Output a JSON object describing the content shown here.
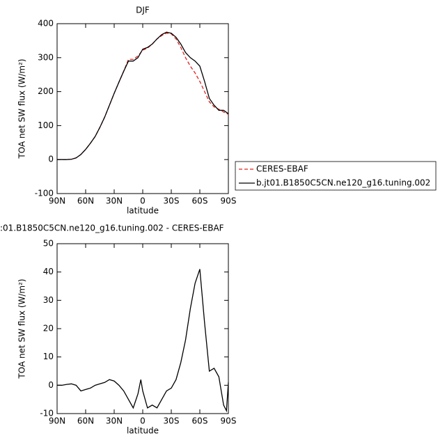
{
  "chart_data": [
    {
      "type": "line",
      "title": "DJF",
      "y_label": "TOA net SW flux (W/m²)",
      "x_label": "latitude",
      "x": [
        90,
        85,
        80,
        75,
        70,
        65,
        60,
        55,
        50,
        45,
        40,
        35,
        30,
        25,
        20,
        15,
        10,
        5,
        0,
        -5,
        -10,
        -15,
        -20,
        -25,
        -30,
        -35,
        -40,
        -45,
        -50,
        -55,
        -60,
        -65,
        -70,
        -75,
        -80,
        -85,
        -90
      ],
      "series": [
        {
          "name": "CERES-EBAF",
          "color": "#e0201b",
          "linestyle": "dashed",
          "values": [
            0,
            0,
            0,
            1,
            5,
            15,
            30,
            48,
            68,
            95,
            125,
            160,
            195,
            228,
            260,
            295,
            295,
            305,
            322,
            328,
            340,
            355,
            365,
            372,
            370,
            355,
            330,
            300,
            275,
            255,
            230,
            200,
            170,
            155,
            148,
            140,
            133
          ]
        },
        {
          "name": "b.jt01.B1850C5CN.ne120_g16.tuning.002",
          "color": "#000000",
          "linestyle": "solid",
          "values": [
            0,
            0,
            0,
            1,
            5,
            15,
            30,
            48,
            68,
            95,
            125,
            160,
            195,
            228,
            260,
            290,
            290,
            300,
            325,
            330,
            340,
            355,
            368,
            375,
            372,
            360,
            340,
            315,
            300,
            290,
            275,
            230,
            180,
            160,
            145,
            145,
            135
          ]
        }
      ],
      "xlim": [
        90,
        -90
      ],
      "xticks": [
        {
          "value": 90,
          "label": "90N"
        },
        {
          "value": 60,
          "label": "60N"
        },
        {
          "value": 30,
          "label": "30N"
        },
        0,
        {
          "value": -30,
          "label": "30S"
        },
        {
          "value": -60,
          "label": "60S"
        },
        {
          "value": -90,
          "label": "90S"
        }
      ],
      "ylim": [
        -100,
        400
      ],
      "yticks": [
        -100,
        0,
        100,
        200,
        300,
        400
      ]
    },
    {
      "type": "line",
      "title": ":01.B1850C5CN.ne120_g16.tuning.002 - CERES-EBAF",
      "y_label": "TOA net SW flux (W/m²)",
      "x_label": "latitude",
      "x": [
        90,
        85,
        80,
        75,
        70,
        65,
        60,
        55,
        50,
        45,
        40,
        35,
        30,
        25,
        20,
        15,
        10,
        5,
        2,
        0,
        -5,
        -10,
        -15,
        -20,
        -25,
        -30,
        -35,
        -40,
        -45,
        -50,
        -55,
        -60,
        -65,
        -70,
        -75,
        -80,
        -85,
        -88,
        -90
      ],
      "values": [
        0,
        0,
        0.3,
        0.5,
        0,
        -2,
        -1.5,
        -1,
        0,
        0.5,
        1,
        2,
        1.5,
        0,
        -2,
        -5,
        -8,
        -3,
        2,
        -2,
        -8,
        -7,
        -8,
        -5,
        -2,
        -1,
        2,
        8,
        16,
        27,
        36,
        41,
        22,
        5,
        6,
        3,
        -7,
        -9,
        1
      ],
      "color": "#000000",
      "xlim": [
        90,
        -90
      ],
      "xticks": [
        {
          "value": 90,
          "label": "90N"
        },
        {
          "value": 60,
          "label": "60N"
        },
        {
          "value": 30,
          "label": "30N"
        },
        0,
        {
          "value": -30,
          "label": "30S"
        },
        {
          "value": -60,
          "label": "60S"
        },
        {
          "value": -90,
          "label": "90S"
        }
      ],
      "ylim": [
        -10,
        50
      ],
      "yticks": [
        -10,
        0,
        10,
        20,
        30,
        40,
        50
      ]
    }
  ]
}
